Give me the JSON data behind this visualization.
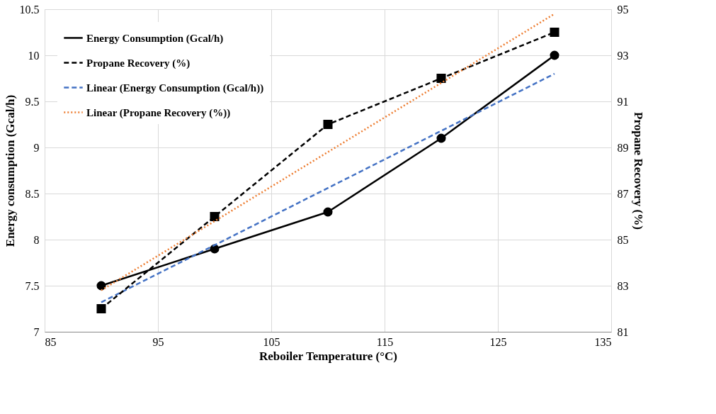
{
  "chart_data": {
    "type": "line",
    "xlabel": "Reboiler Temperature (°C)",
    "ylabel": "Energy consumption (Gcal/h)",
    "y2label": "Propane Recovery (%)",
    "xlim": [
      85,
      135
    ],
    "xticks": [
      85,
      95,
      105,
      115,
      125,
      135
    ],
    "ylim": [
      7,
      10.5
    ],
    "yticks": [
      7,
      7.5,
      8,
      8.5,
      9,
      9.5,
      10,
      10.5
    ],
    "y2lim": [
      81,
      95
    ],
    "y2ticks": [
      81,
      83,
      85,
      87,
      89,
      91,
      93,
      95
    ],
    "grid": true,
    "legend": "top left",
    "series": [
      {
        "name": "Energy Consumption (Gcal/h)",
        "color": "#000000",
        "marker": "circle",
        "line_style": "solid",
        "x": [
          90,
          100,
          110,
          120,
          130
        ],
        "values": [
          7.5,
          7.9,
          8.3,
          9.1,
          10.0
        ]
      },
      {
        "name": "Propane Recovery (%)",
        "color": "#000000",
        "marker": "square",
        "line_style": "dashed",
        "axis": "y2",
        "x": [
          90,
          100,
          110,
          120,
          130
        ],
        "values": [
          82,
          86,
          90,
          92,
          94
        ]
      },
      {
        "name": "Linear (Energy Consumption (Gcal/h))",
        "color": "#4472c4",
        "marker": "none",
        "line_style": "dashed",
        "x": [
          90,
          130
        ],
        "values": [
          7.32,
          9.8
        ]
      },
      {
        "name": "Linear (Propane Recovery (%))",
        "color": "#ed7d31",
        "marker": "none",
        "line_style": "dotted",
        "axis": "y2",
        "x": [
          90,
          130
        ],
        "values": [
          82.8,
          94.8
        ]
      }
    ]
  }
}
